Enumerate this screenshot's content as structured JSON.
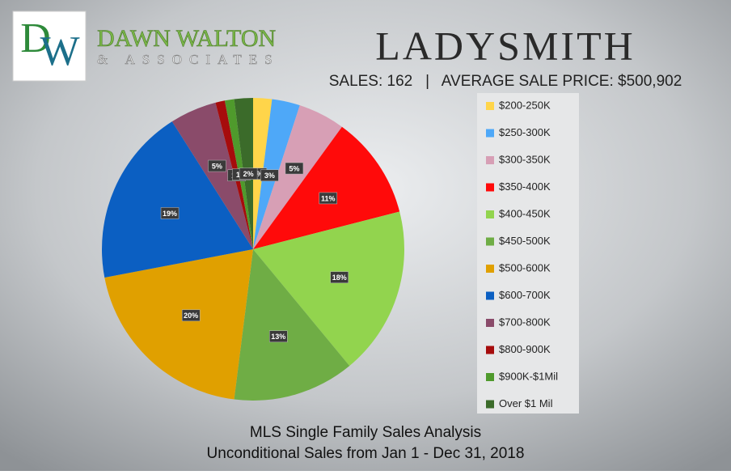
{
  "logo": {
    "initials_1": "D",
    "initials_2": "W",
    "name": "DAWN WALTON",
    "tagline": "& ASSOCIATES"
  },
  "chart_data": {
    "type": "pie",
    "title": "LADYSMITH",
    "subtitle": "SALES: 162   |   AVERAGE SALE PRICE: $500,902",
    "footer_1": "MLS Single Family Sales Analysis",
    "footer_2": "Unconditional Sales from Jan 1 - Dec 31, 2018",
    "categories": [
      "$200-250K",
      "$250-300K",
      "$300-350K",
      "$350-400K",
      "$400-450K",
      "$450-500K",
      "$500-600K",
      "$600-700K",
      "$700-800K",
      "$800-900K",
      "$900K-$1Mil",
      "Over $1 Mil"
    ],
    "values": [
      2,
      3,
      5,
      11,
      18,
      13,
      20,
      19,
      5,
      1,
      1,
      2
    ],
    "value_labels": [
      "2%",
      "3%",
      "5%",
      "11%",
      "18%",
      "13%",
      "20%",
      "19%",
      "5%",
      "1%",
      "1%",
      "2%"
    ],
    "colors": [
      "#ffd54a",
      "#4ea8f8",
      "#d79fb5",
      "#ff0a0a",
      "#92d44e",
      "#6fad45",
      "#e0a000",
      "#0b5fc2",
      "#8a4b6a",
      "#a60c0c",
      "#4f9a2c",
      "#3b6b2a"
    ]
  }
}
